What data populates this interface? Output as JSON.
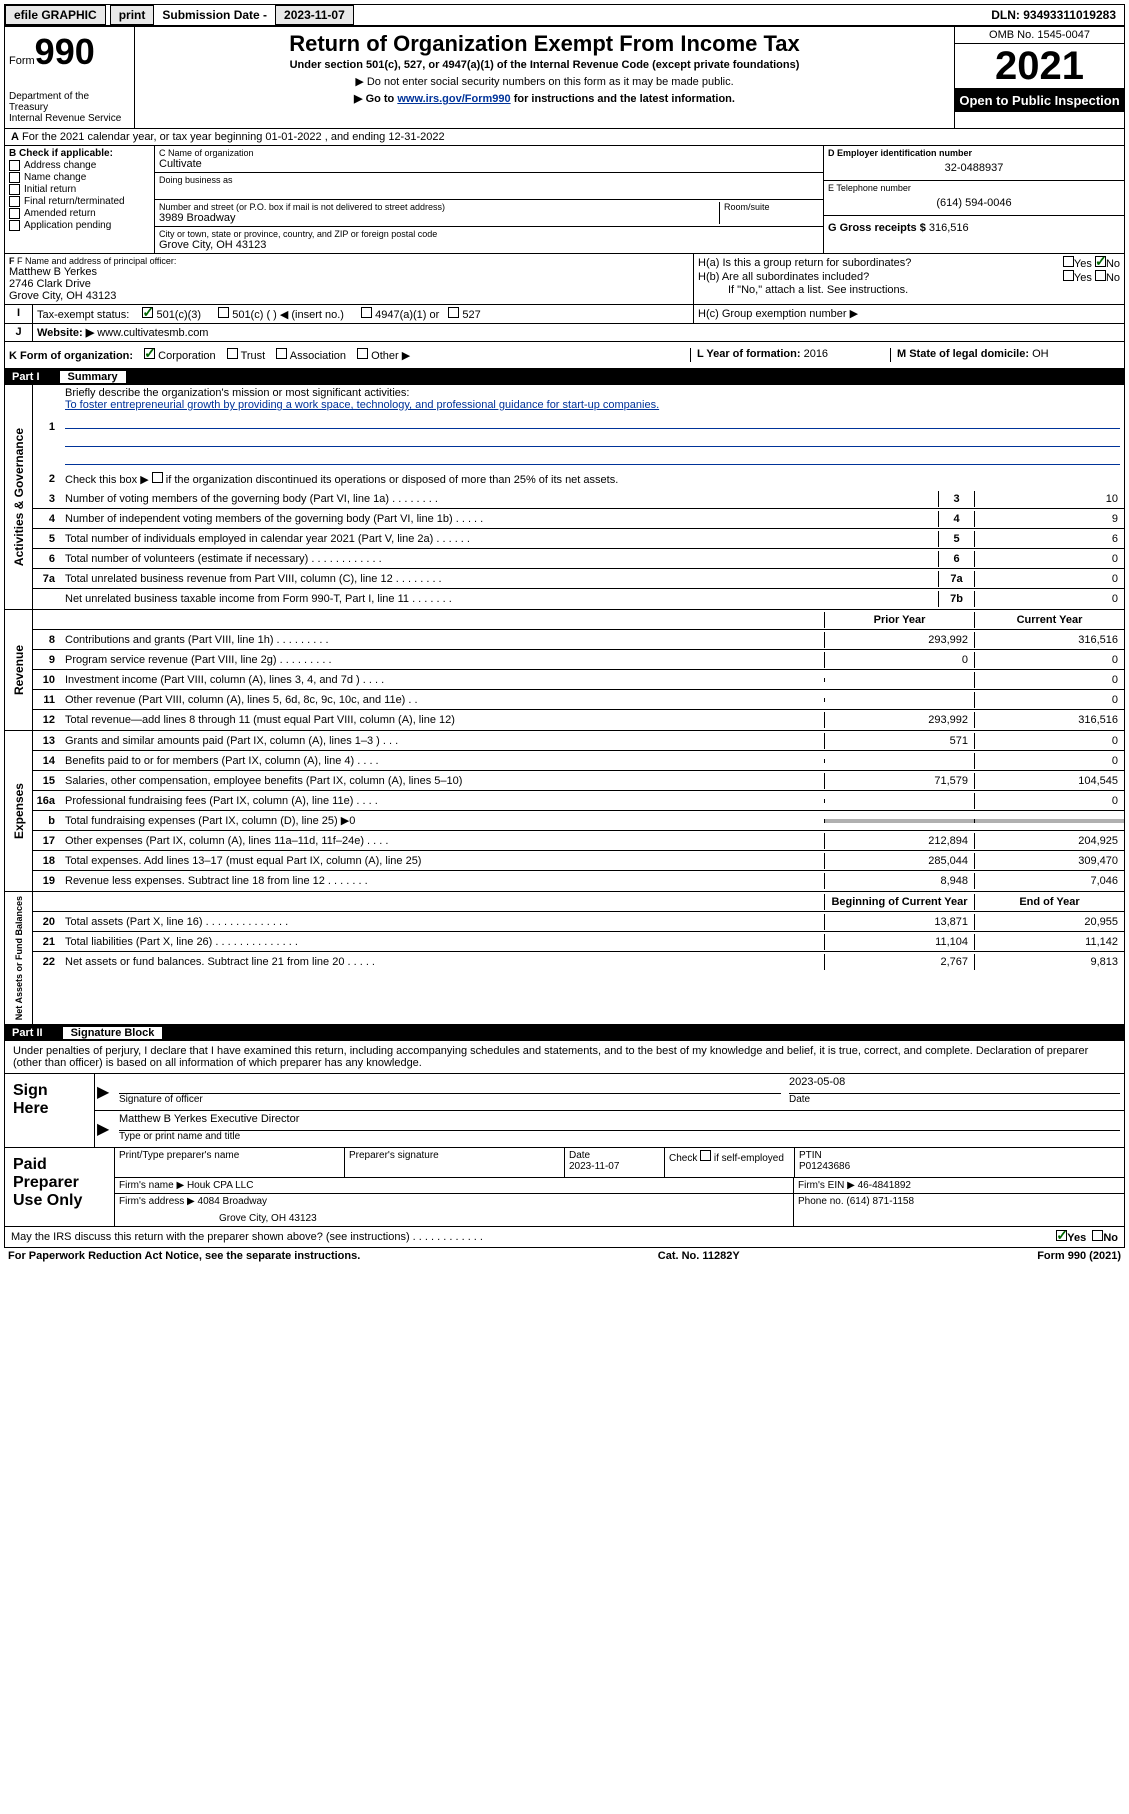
{
  "topbar": {
    "efile": "efile GRAPHIC",
    "print": "print",
    "sub_label": "Submission Date -",
    "sub_date": "2023-11-07",
    "dln": "DLN: 93493311019283"
  },
  "header": {
    "form_word": "Form",
    "form_num": "990",
    "dept": "Department of the Treasury",
    "irs": "Internal Revenue Service",
    "title": "Return of Organization Exempt From Income Tax",
    "subtitle": "Under section 501(c), 527, or 4947(a)(1) of the Internal Revenue Code (except private foundations)",
    "note1": "▶ Do not enter social security numbers on this form as it may be made public.",
    "note2_pre": "▶ Go to ",
    "note2_link": "www.irs.gov/Form990",
    "note2_post": " for instructions and the latest information.",
    "omb": "OMB No. 1545-0047",
    "year": "2021",
    "inspect": "Open to Public Inspection"
  },
  "line_a": "For the 2021 calendar year, or tax year beginning 01-01-2022    , and ending 12-31-2022",
  "box_b": {
    "label": "B Check if applicable:",
    "items": [
      "Address change",
      "Name change",
      "Initial return",
      "Final return/terminated",
      "Amended return",
      "Application pending"
    ]
  },
  "box_c": {
    "name_label": "C Name of organization",
    "name": "Cultivate",
    "dba_label": "Doing business as",
    "addr_label": "Number and street (or P.O. box if mail is not delivered to street address)",
    "room_label": "Room/suite",
    "addr": "3989 Broadway",
    "city_label": "City or town, state or province, country, and ZIP or foreign postal code",
    "city": "Grove City, OH  43123"
  },
  "box_d": {
    "label": "D Employer identification number",
    "val": "32-0488937"
  },
  "box_e": {
    "label": "E Telephone number",
    "val": "(614) 594-0046"
  },
  "box_g": {
    "label": "G Gross receipts $",
    "val": "316,516"
  },
  "box_f": {
    "label": "F Name and address of principal officer:",
    "name": "Matthew B Yerkes",
    "addr1": "2746 Clark Drive",
    "addr2": "Grove City, OH  43123"
  },
  "box_h": {
    "ha": "H(a)  Is this a group return for subordinates?",
    "hb": "H(b)  Are all subordinates included?",
    "hb_note": "If \"No,\" attach a list. See instructions.",
    "hc": "H(c)  Group exemption number ▶",
    "yes": "Yes",
    "no": "No"
  },
  "box_i": {
    "label": "Tax-exempt status:",
    "opts": [
      "501(c)(3)",
      "501(c) (  ) ◀ (insert no.)",
      "4947(a)(1) or",
      "527"
    ]
  },
  "box_j": {
    "label": "Website: ▶",
    "val": "www.cultivatesmb.com"
  },
  "box_k": {
    "label": "K Form of organization:",
    "opts": [
      "Corporation",
      "Trust",
      "Association",
      "Other ▶"
    ]
  },
  "box_l": {
    "label": "L Year of formation:",
    "val": "2016"
  },
  "box_m": {
    "label": "M State of legal domicile:",
    "val": "OH"
  },
  "parts": {
    "p1": {
      "num": "Part I",
      "title": "Summary"
    },
    "p2": {
      "num": "Part II",
      "title": "Signature Block"
    }
  },
  "summary": {
    "mission_label": "Briefly describe the organization's mission or most significant activities:",
    "mission": "To foster entrepreneurial growth by providing a work space, technology, and professional guidance for start-up companies.",
    "line2": "Check this box ▶        if the organization discontinued its operations or disposed of more than 25% of its net assets.",
    "lines_gov": [
      {
        "n": "3",
        "t": "Number of voting members of the governing body (Part VI, line 1a)   .    .    .    .    .    .    .    .",
        "col": "3",
        "v": "10"
      },
      {
        "n": "4",
        "t": "Number of independent voting members of the governing body (Part VI, line 1b)   .    .    .    .    .",
        "col": "4",
        "v": "9"
      },
      {
        "n": "5",
        "t": "Total number of individuals employed in calendar year 2021 (Part V, line 2a)   .    .    .    .    .    .",
        "col": "5",
        "v": "6"
      },
      {
        "n": "6",
        "t": "Total number of volunteers (estimate if necessary)   .    .    .    .    .    .    .    .    .    .    .    .",
        "col": "6",
        "v": "0"
      },
      {
        "n": "7a",
        "t": "Total unrelated business revenue from Part VIII, column (C), line 12   .    .    .    .    .    .    .    .",
        "col": "7a",
        "v": "0"
      },
      {
        "n": "",
        "t": "Net unrelated business taxable income from Form 990-T, Part I, line 11   .    .    .    .    .    .    .",
        "col": "7b",
        "v": "0"
      }
    ],
    "col_headers": {
      "prior": "Prior Year",
      "current": "Current Year",
      "begin": "Beginning of Current Year",
      "end": "End of Year"
    },
    "lines_rev": [
      {
        "n": "8",
        "t": "Contributions and grants (Part VIII, line 1h)   .    .    .    .    .    .    .    .    .",
        "p": "293,992",
        "c": "316,516"
      },
      {
        "n": "9",
        "t": "Program service revenue (Part VIII, line 2g)   .    .    .    .    .    .    .    .    .",
        "p": "0",
        "c": "0"
      },
      {
        "n": "10",
        "t": "Investment income (Part VIII, column (A), lines 3, 4, and 7d )   .    .    .    .",
        "p": "",
        "c": "0"
      },
      {
        "n": "11",
        "t": "Other revenue (Part VIII, column (A), lines 5, 6d, 8c, 9c, 10c, and 11e)   .    .",
        "p": "",
        "c": "0"
      },
      {
        "n": "12",
        "t": "Total revenue—add lines 8 through 11 (must equal Part VIII, column (A), line 12)",
        "p": "293,992",
        "c": "316,516"
      }
    ],
    "lines_exp": [
      {
        "n": "13",
        "t": "Grants and similar amounts paid (Part IX, column (A), lines 1–3 )   .    .    .",
        "p": "571",
        "c": "0"
      },
      {
        "n": "14",
        "t": "Benefits paid to or for members (Part IX, column (A), line 4)   .    .    .    .",
        "p": "",
        "c": "0"
      },
      {
        "n": "15",
        "t": "Salaries, other compensation, employee benefits (Part IX, column (A), lines 5–10)",
        "p": "71,579",
        "c": "104,545"
      },
      {
        "n": "16a",
        "t": "Professional fundraising fees (Part IX, column (A), line 11e)   .    .    .    .",
        "p": "",
        "c": "0"
      },
      {
        "n": "b",
        "t": "Total fundraising expenses (Part IX, column (D), line 25) ▶0",
        "p": "shaded",
        "c": "shaded"
      },
      {
        "n": "17",
        "t": "Other expenses (Part IX, column (A), lines 11a–11d, 11f–24e)   .    .    .    .",
        "p": "212,894",
        "c": "204,925"
      },
      {
        "n": "18",
        "t": "Total expenses. Add lines 13–17 (must equal Part IX, column (A), line 25)",
        "p": "285,044",
        "c": "309,470"
      },
      {
        "n": "19",
        "t": "Revenue less expenses. Subtract line 18 from line 12   .    .    .    .    .    .    .",
        "p": "8,948",
        "c": "7,046"
      }
    ],
    "lines_net": [
      {
        "n": "20",
        "t": "Total assets (Part X, line 16)   .    .    .    .    .    .    .    .    .    .    .    .    .    .",
        "p": "13,871",
        "c": "20,955"
      },
      {
        "n": "21",
        "t": "Total liabilities (Part X, line 26)   .    .    .    .    .    .    .    .    .    .    .    .    .    .",
        "p": "11,104",
        "c": "11,142"
      },
      {
        "n": "22",
        "t": "Net assets or fund balances. Subtract line 21 from line 20   .    .    .    .    .",
        "p": "2,767",
        "c": "9,813"
      }
    ],
    "vert": {
      "gov": "Activities & Governance",
      "rev": "Revenue",
      "exp": "Expenses",
      "net": "Net Assets or Fund Balances"
    }
  },
  "sig": {
    "declare": "Under penalties of perjury, I declare that I have examined this return, including accompanying schedules and statements, and to the best of my knowledge and belief, it is true, correct, and complete. Declaration of preparer (other than officer) is based on all information of which preparer has any knowledge.",
    "sign_here": "Sign Here",
    "sig_officer": "Signature of officer",
    "sig_date": "2023-05-08",
    "date_label": "Date",
    "officer_name": "Matthew B Yerkes  Executive Director",
    "officer_label": "Type or print name and title",
    "paid": "Paid Preparer Use Only",
    "prep_name_label": "Print/Type preparer's name",
    "prep_sig_label": "Preparer's signature",
    "prep_date_label": "Date",
    "prep_date": "2023-11-07",
    "check_label": "Check          if self-employed",
    "ptin_label": "PTIN",
    "ptin": "P01243686",
    "firm_name_label": "Firm's name     ▶",
    "firm_name": "Houk CPA LLC",
    "firm_ein_label": "Firm's EIN ▶",
    "firm_ein": "46-4841892",
    "firm_addr_label": "Firm's address ▶",
    "firm_addr1": "4084 Broadway",
    "firm_addr2": "Grove City, OH  43123",
    "phone_label": "Phone no.",
    "phone": "(614) 871-1158",
    "discuss": "May the IRS discuss this return with the preparer shown above? (see instructions)   .    .    .    .    .    .    .    .    .    .    .    .",
    "yes": "Yes",
    "no": "No"
  },
  "footer": {
    "left": "For Paperwork Reduction Act Notice, see the separate instructions.",
    "center": "Cat. No. 11282Y",
    "right": "Form 990 (2021)"
  }
}
